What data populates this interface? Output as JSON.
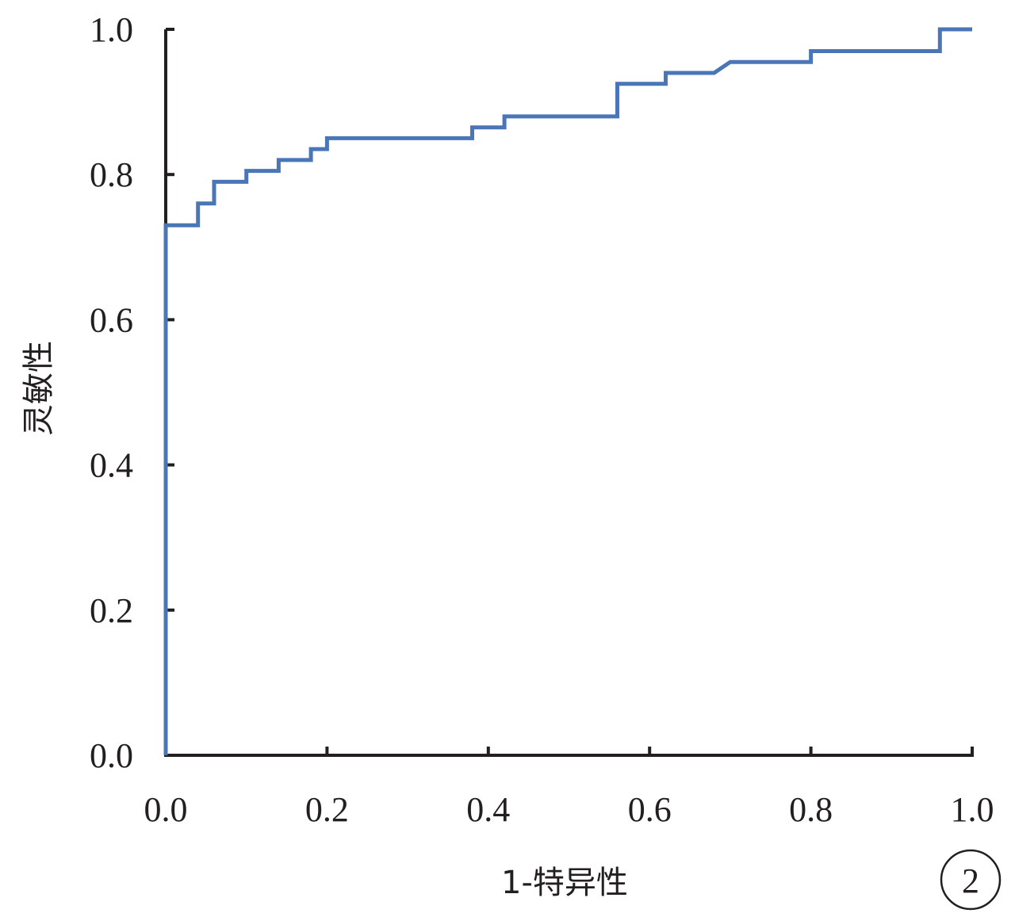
{
  "chart_data": {
    "type": "line",
    "xlabel": "1-特异性",
    "ylabel": "灵敏性",
    "panel_label": "2",
    "xlim": [
      0,
      1
    ],
    "ylim": [
      0,
      1
    ],
    "x_ticks": [
      "0.0",
      "0.2",
      "0.4",
      "0.6",
      "0.8",
      "1.0"
    ],
    "y_ticks": [
      "0.0",
      "0.2",
      "0.4",
      "0.6",
      "0.8",
      "1.0"
    ],
    "grid": false,
    "line_color": "#4a76b8",
    "axis_color": "#231f20",
    "series": [
      {
        "x": [
          0.0,
          0.0,
          0.04,
          0.04,
          0.06,
          0.06,
          0.1,
          0.1,
          0.14,
          0.14,
          0.18,
          0.18,
          0.2,
          0.2,
          0.38,
          0.38,
          0.42,
          0.42,
          0.56,
          0.56,
          0.62,
          0.62,
          0.68,
          0.7,
          0.8,
          0.8,
          0.96,
          0.96,
          1.0
        ],
        "y": [
          0.0,
          0.73,
          0.73,
          0.76,
          0.76,
          0.79,
          0.79,
          0.805,
          0.805,
          0.82,
          0.82,
          0.835,
          0.835,
          0.85,
          0.85,
          0.865,
          0.865,
          0.88,
          0.88,
          0.925,
          0.925,
          0.94,
          0.94,
          0.955,
          0.955,
          0.97,
          0.97,
          1.0,
          1.0
        ]
      }
    ]
  }
}
